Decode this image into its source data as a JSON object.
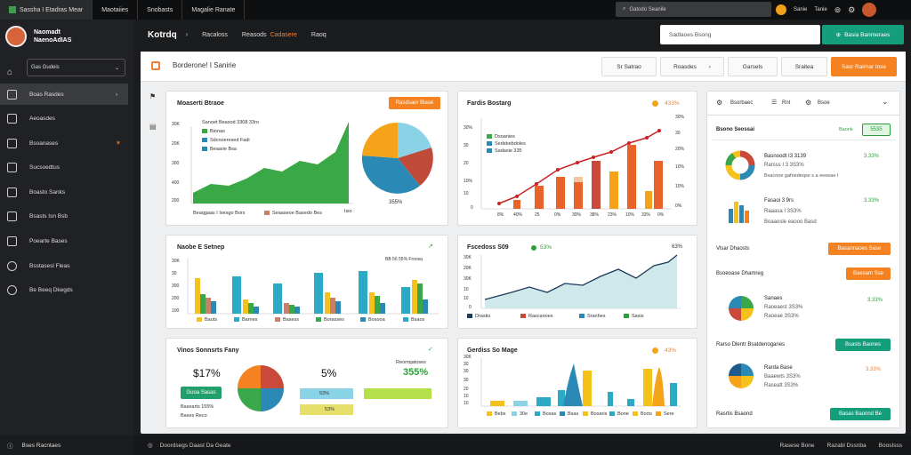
{
  "topbar": {
    "tabs": [
      "Sassha I Etadras Mear",
      "Maotaiies",
      "Snobasts",
      "Magalie Ranate"
    ],
    "search_placeholder": "Gatodo Seanile",
    "user_label": "Sanie",
    "user_label2": "Tanie"
  },
  "sidebar": {
    "user_name_1": "Naomadt",
    "user_name_2": "NaenoAdIAS",
    "select_value": "Gas Gudeis",
    "items": [
      {
        "label": "Boas Rasdes",
        "icon": "layers-icon"
      },
      {
        "label": "Aeoasdes",
        "icon": "list-icon"
      },
      {
        "label": "Bsoanases",
        "icon": "lock-icon"
      },
      {
        "label": "Sucsoedtus",
        "icon": "doc-icon"
      },
      {
        "label": "Boasto Sanks",
        "icon": "shield-icon"
      },
      {
        "label": "Bsasts Isn Bsb",
        "icon": "chart-icon"
      },
      {
        "label": "Poearte Bases",
        "icon": "message-icon"
      },
      {
        "label": "Bsstasesl Fleas",
        "icon": "target-icon"
      },
      {
        "label": "Be Beeq Dkegds",
        "icon": "gear-icon"
      }
    ],
    "footer": "Bses Racntaes"
  },
  "header": {
    "brand": "Kotrdq",
    "crumbs": [
      "Racaloss",
      "Reasods",
      "Cadasere",
      "Raoq"
    ],
    "search_placeholder": "Sadlaoes Bsong",
    "button": "Basia Banmeraes"
  },
  "toolbar": {
    "title": "Borderone! I Sanirie",
    "buttons": [
      "Sr Satrao",
      "Roasdes",
      "Garsels",
      "Sraitea",
      "Sasr Raimar Inse"
    ]
  },
  "card1": {
    "title": "Moaserti Btraoe",
    "button": "Rasdsaor Blase",
    "legend": [
      "Sanoet Beasod 3308 33ro",
      "Bionas",
      "Sdcnoeresed Fadi",
      "Beaarie Bsa"
    ],
    "yticks": [
      "30K",
      "20K",
      "300",
      "400",
      "200"
    ],
    "footer": [
      "Beaqgaas I Isesgo Bors",
      "Seaaseoe Basedo Bes",
      "Isio"
    ],
    "pie_label": "355%"
  },
  "card2": {
    "title": "Fardis Bostarg",
    "stat": "433%",
    "legend": [
      "Dsoanies",
      "Sedsbebdoles",
      "Sadasie 335"
    ],
    "yticks": [
      "30%",
      "30",
      "20",
      "10%",
      "10",
      "0"
    ],
    "rticks": [
      "30%",
      "30",
      "20%",
      "10%",
      "10%",
      "0%"
    ],
    "xticks": [
      "8%",
      "40%",
      "25",
      "0%",
      "30%",
      "38%",
      "23%",
      "10%",
      "33%",
      "0%"
    ]
  },
  "card3": {
    "title": "Naobe E Setnep",
    "legend": "BB 56 55% Fronsa",
    "yticks": [
      "30K",
      "30",
      "300",
      "200",
      "100"
    ],
    "xlabels": [
      "Bauts",
      "Barnes",
      "Basess",
      "Borasses",
      "Bosooa",
      "Bsaos"
    ]
  },
  "card4": {
    "title": "Fscedoss S09",
    "stat": "53%",
    "stat2": "63%",
    "yticks": [
      "30K",
      "20K",
      "30K",
      "10",
      "10",
      "0"
    ],
    "legend": [
      "Drastis",
      "Rascanoes",
      "Sranhes",
      "Sasis"
    ]
  },
  "card5": {
    "title": "Vinos Sonnsrts Fany",
    "value1": "$17%",
    "value2": "5%",
    "button": "Guoa Sasas",
    "lines": [
      "Basearts 155%",
      "Bases Reco"
    ],
    "right_label": "Reomqatoses",
    "right_value": "355%",
    "bar1": "53%",
    "bar2": "53%"
  },
  "card6": {
    "title": "Gerdiss So Mage",
    "stat": "43%",
    "yticks": [
      "30K",
      "30",
      "30",
      "30",
      "20",
      "10",
      "10"
    ],
    "xlabels": [
      "Bebs",
      "30e",
      "Bosas",
      "Bsas",
      "Bosaris",
      "Bone",
      "Borts",
      "Sere"
    ]
  },
  "rightpanel": {
    "tabs": [
      "Bsorbaec",
      "Rnt",
      "Bsoe"
    ],
    "header": "Bsono Seossai",
    "header_btn": "5535",
    "items": [
      {
        "title": "Basnoodt I3 3139",
        "pct": "3.33%",
        "sub1": "Rarsss I 3 3S3%",
        "sub2": "Bsacnoe gafnedeqse s a eeeeae I"
      },
      {
        "title": "Fasaoi 3 9rs",
        "pct": "3.33%",
        "sub1": "Raaasa I 3S3%",
        "sub2": "Boaaosle eaooo Basd"
      }
    ],
    "btn1_label": "Vlsar Dhaosts",
    "btn1": "Basannaoes Sase",
    "row2_label": "Bsoeoase Dhamreg",
    "btn2": "Baesam Sse",
    "item3": {
      "title": "Sanaes",
      "pct": "3.33%",
      "sub1": "Raoeaest 3S3%",
      "sub2": "Raoeae 3S3%"
    },
    "row3_label": "Rarso Dlentr Bsatdenoganes",
    "btn3": "Bsasts Baones",
    "item4": {
      "title": "Rarda Base",
      "sub1": "Baaewts 3S3%",
      "sub2": "Raseatt 3S3%",
      "pct": "3.33%"
    },
    "row4_label": "Rasrtis Bsaond",
    "btn4": "Basas Baonnd Be"
  },
  "footer": {
    "left": "Doordsegs Daast Da Geate",
    "right": [
      "Rasese Bone",
      "Razabl Dssnba",
      "BoosIsss"
    ]
  },
  "colors": {
    "green": "#3aa84a",
    "orange": "#f48220",
    "teal": "#149e7c",
    "blue": "#2b8ab5",
    "yellow": "#f5c21b"
  }
}
